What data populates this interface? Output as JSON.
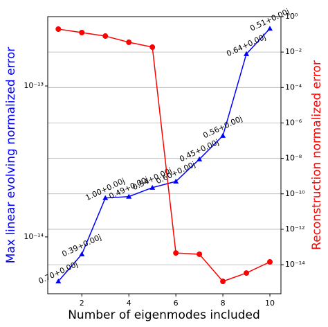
{
  "chart_data": {
    "type": "line",
    "x_label": "Number of eigenmodes included",
    "y_label": "Max linear evolving normalized error",
    "y2_label": "Reconstruction normalized error",
    "x": [
      1,
      2,
      3,
      4,
      5,
      6,
      7,
      8,
      9,
      10
    ],
    "xlim": [
      0.55,
      10.47
    ],
    "xticks": [
      2,
      4,
      6,
      8,
      10
    ],
    "y_scale": "log",
    "ylim": [
      4.2e-15,
      2.88e-13
    ],
    "yticks": [
      {
        "value": 1e-14,
        "label": "10⁻¹⁴"
      },
      {
        "value": 1e-13,
        "label": "10⁻¹³"
      }
    ],
    "y2_scale": "log",
    "y2lim": [
      2.3e-16,
      1
    ],
    "y2ticks": [
      {
        "value": 1e-14,
        "label": "10⁻¹⁴"
      },
      {
        "value": 1e-12,
        "label": "10⁻¹²"
      },
      {
        "value": 1e-10,
        "label": "10⁻¹⁰"
      },
      {
        "value": 1e-08,
        "label": "10⁻⁸"
      },
      {
        "value": 1e-06,
        "label": "10⁻⁶"
      },
      {
        "value": 0.0001,
        "label": "10⁻⁴"
      },
      {
        "value": 0.01,
        "label": "10⁻²"
      },
      {
        "value": 1,
        "label": "10⁰"
      }
    ],
    "grid": "y2",
    "series": [
      {
        "name": "Max linear evolving normalized error",
        "color": "#0000ff",
        "marker": "triangle",
        "axis": "y",
        "values": [
          5.08e-15,
          7.67e-15,
          1.81e-14,
          1.85e-14,
          2.12e-14,
          2.33e-14,
          3.27e-14,
          4.68e-14,
          1.63e-13,
          2.4e-13
        ],
        "annotations": [
          "0.70+0.00j",
          "0.39+0.00j",
          "1.00+0.00j",
          "0.49+0.00j",
          "0.54+0.00j",
          "0.60+0.00j",
          "0.45+0.00j",
          "0.56+0.00j",
          "0.64+0.00j",
          "0.51+0.00j"
        ]
      },
      {
        "name": "Reconstruction normalized error",
        "color": "#ff0000",
        "marker": "circle",
        "axis": "y2",
        "values": [
          0.198,
          0.126,
          0.08,
          0.0357,
          0.019,
          4.6e-14,
          3.9e-14,
          1.15e-15,
          3.4e-15,
          1.44e-14
        ]
      }
    ]
  }
}
